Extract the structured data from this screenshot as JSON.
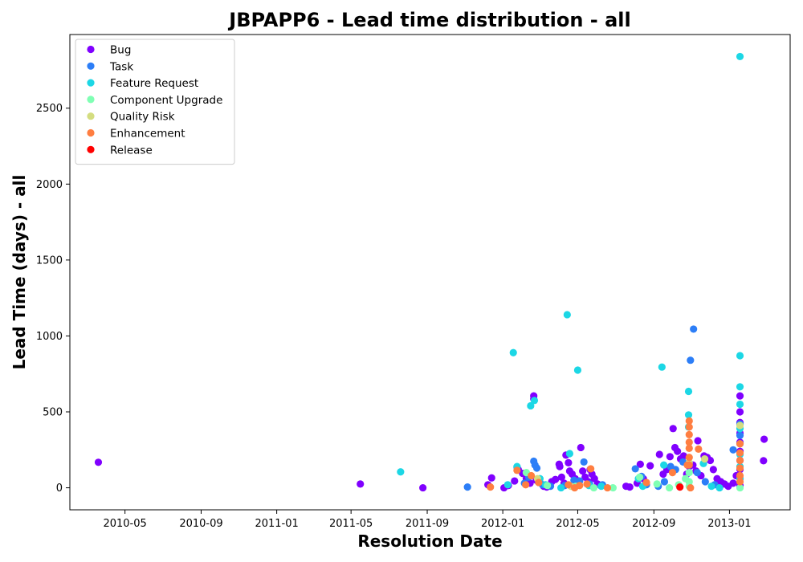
{
  "chart_data": {
    "type": "scatter",
    "title": "JBPAPP6 - Lead time distribution - all",
    "xlabel": "Resolution Date",
    "ylabel": "Lead Time (days) - all",
    "x_axis_type": "date",
    "xlim": [
      "2010-02-01",
      "2013-04-09"
    ],
    "ylim": [
      -145,
      2985
    ],
    "x_ticks": [
      "2010-05-01",
      "2010-09-01",
      "2011-01-01",
      "2011-05-01",
      "2011-09-01",
      "2012-01-01",
      "2012-05-01",
      "2012-09-01",
      "2013-01-01"
    ],
    "x_tick_labels": [
      "2010-05",
      "2010-09",
      "2011-01",
      "2011-05",
      "2011-09",
      "2012-01",
      "2012-05",
      "2012-09",
      "2013-01"
    ],
    "y_ticks": [
      0,
      500,
      1000,
      1500,
      2000,
      2500
    ],
    "y_tick_labels": [
      "0",
      "500",
      "1000",
      "1500",
      "2000",
      "2500"
    ],
    "grid": false,
    "legend_position": "top-left",
    "series": [
      {
        "name": "Bug",
        "color": "#8000ff",
        "points": [
          [
            "2010-03-19",
            168
          ],
          [
            "2011-05-16",
            25
          ],
          [
            "2011-08-25",
            0
          ],
          [
            "2011-12-08",
            20
          ],
          [
            "2011-12-14",
            65
          ],
          [
            "2012-01-03",
            0
          ],
          [
            "2012-01-10",
            15
          ],
          [
            "2012-01-20",
            45
          ],
          [
            "2012-01-26",
            120
          ],
          [
            "2012-02-02",
            95
          ],
          [
            "2012-02-08",
            60
          ],
          [
            "2012-02-14",
            30
          ],
          [
            "2012-02-20",
            605
          ],
          [
            "2012-02-20",
            585
          ],
          [
            "2012-02-24",
            50
          ],
          [
            "2012-03-01",
            35
          ],
          [
            "2012-03-07",
            10
          ],
          [
            "2012-03-12",
            5
          ],
          [
            "2012-03-20",
            40
          ],
          [
            "2012-03-26",
            55
          ],
          [
            "2012-04-01",
            155
          ],
          [
            "2012-04-02",
            140
          ],
          [
            "2012-04-05",
            70
          ],
          [
            "2012-04-09",
            30
          ],
          [
            "2012-04-12",
            215
          ],
          [
            "2012-04-16",
            165
          ],
          [
            "2012-04-18",
            110
          ],
          [
            "2012-04-22",
            90
          ],
          [
            "2012-04-27",
            60
          ],
          [
            "2012-05-02",
            25
          ],
          [
            "2012-05-06",
            265
          ],
          [
            "2012-05-09",
            110
          ],
          [
            "2012-05-13",
            70
          ],
          [
            "2012-05-18",
            40
          ],
          [
            "2012-05-21",
            120
          ],
          [
            "2012-05-24",
            90
          ],
          [
            "2012-05-28",
            60
          ],
          [
            "2012-06-02",
            25
          ],
          [
            "2012-06-07",
            15
          ],
          [
            "2012-07-18",
            10
          ],
          [
            "2012-07-24",
            5
          ],
          [
            "2012-08-05",
            30
          ],
          [
            "2012-08-10",
            155
          ],
          [
            "2012-08-15",
            60
          ],
          [
            "2012-08-26",
            145
          ],
          [
            "2012-09-10",
            220
          ],
          [
            "2012-09-16",
            90
          ],
          [
            "2012-09-22",
            120
          ],
          [
            "2012-09-27",
            205
          ],
          [
            "2012-10-02",
            390
          ],
          [
            "2012-10-05",
            265
          ],
          [
            "2012-10-09",
            240
          ],
          [
            "2012-10-14",
            190
          ],
          [
            "2012-10-19",
            210
          ],
          [
            "2012-10-24",
            90
          ],
          [
            "2012-10-28",
            140
          ],
          [
            "2012-11-03",
            150
          ],
          [
            "2012-11-08",
            110
          ],
          [
            "2012-11-11",
            310
          ],
          [
            "2012-11-16",
            80
          ],
          [
            "2012-11-21",
            210
          ],
          [
            "2012-11-26",
            200
          ],
          [
            "2012-12-01",
            180
          ],
          [
            "2012-12-06",
            120
          ],
          [
            "2012-12-12",
            60
          ],
          [
            "2012-12-18",
            40
          ],
          [
            "2012-12-24",
            25
          ],
          [
            "2012-12-30",
            10
          ],
          [
            "2013-01-07",
            30
          ],
          [
            "2013-01-12",
            80
          ],
          [
            "2013-01-18",
            605
          ],
          [
            "2013-01-18",
            500
          ],
          [
            "2013-01-18",
            430
          ],
          [
            "2013-01-18",
            360
          ],
          [
            "2013-01-18",
            300
          ],
          [
            "2013-01-18",
            240
          ],
          [
            "2013-01-18",
            180
          ],
          [
            "2013-01-18",
            120
          ],
          [
            "2013-01-18",
            60
          ],
          [
            "2013-01-18",
            15
          ],
          [
            "2013-02-26",
            320
          ],
          [
            "2013-02-25",
            178
          ]
        ]
      },
      {
        "name": "Task",
        "color": "#2c7ef7",
        "points": [
          [
            "2011-11-05",
            5
          ],
          [
            "2012-01-24",
            135
          ],
          [
            "2012-02-05",
            30
          ],
          [
            "2012-02-12",
            70
          ],
          [
            "2012-02-20",
            175
          ],
          [
            "2012-02-22",
            150
          ],
          [
            "2012-02-25",
            130
          ],
          [
            "2012-03-05",
            20
          ],
          [
            "2012-03-18",
            10
          ],
          [
            "2012-04-10",
            15
          ],
          [
            "2012-04-25",
            50
          ],
          [
            "2012-05-04",
            45
          ],
          [
            "2012-05-11",
            170
          ],
          [
            "2012-05-20",
            25
          ],
          [
            "2012-06-10",
            20
          ],
          [
            "2012-08-02",
            125
          ],
          [
            "2012-08-12",
            75
          ],
          [
            "2012-08-20",
            20
          ],
          [
            "2012-09-08",
            10
          ],
          [
            "2012-09-18",
            40
          ],
          [
            "2012-09-28",
            140
          ],
          [
            "2012-10-06",
            120
          ],
          [
            "2012-10-18",
            170
          ],
          [
            "2012-10-30",
            840
          ],
          [
            "2012-11-04",
            1045
          ],
          [
            "2012-11-10",
            100
          ],
          [
            "2012-11-23",
            40
          ],
          [
            "2012-12-08",
            20
          ],
          [
            "2013-01-07",
            250
          ],
          [
            "2013-01-18",
            420
          ],
          [
            "2013-01-18",
            345
          ]
        ]
      },
      {
        "name": "Feature Request",
        "color": "#1cd7e5",
        "points": [
          [
            "2011-07-20",
            105
          ],
          [
            "2012-01-09",
            20
          ],
          [
            "2012-01-18",
            890
          ],
          [
            "2012-01-24",
            140
          ],
          [
            "2012-02-15",
            540
          ],
          [
            "2012-02-21",
            575
          ],
          [
            "2012-03-01",
            60
          ],
          [
            "2012-03-10",
            20
          ],
          [
            "2012-04-04",
            0
          ],
          [
            "2012-04-14",
            1140
          ],
          [
            "2012-04-18",
            225
          ],
          [
            "2012-05-01",
            775
          ],
          [
            "2012-05-19",
            15
          ],
          [
            "2012-06-08",
            10
          ],
          [
            "2012-08-07",
            60
          ],
          [
            "2012-08-14",
            10
          ],
          [
            "2012-09-14",
            795
          ],
          [
            "2012-09-17",
            150
          ],
          [
            "2012-10-27",
            635
          ],
          [
            "2012-10-27",
            480
          ],
          [
            "2012-10-27",
            400
          ],
          [
            "2012-11-20",
            160
          ],
          [
            "2012-12-03",
            10
          ],
          [
            "2012-12-16",
            0
          ],
          [
            "2013-01-18",
            2840
          ],
          [
            "2013-01-18",
            870
          ],
          [
            "2013-01-18",
            665
          ],
          [
            "2013-01-18",
            550
          ],
          [
            "2013-01-18",
            390
          ],
          [
            "2013-01-18",
            290
          ],
          [
            "2013-01-18",
            220
          ],
          [
            "2013-01-18",
            140
          ],
          [
            "2013-01-18",
            60
          ]
        ]
      },
      {
        "name": "Component  Upgrade",
        "color": "#80ffb4",
        "points": [
          [
            "2012-02-08",
            100
          ],
          [
            "2012-03-13",
            15
          ],
          [
            "2012-04-28",
            10
          ],
          [
            "2012-05-27",
            0
          ],
          [
            "2012-06-27",
            0
          ],
          [
            "2012-08-09",
            70
          ],
          [
            "2012-09-06",
            25
          ],
          [
            "2012-09-26",
            0
          ],
          [
            "2012-10-11",
            20
          ],
          [
            "2012-10-22",
            60
          ],
          [
            "2012-10-28",
            40
          ],
          [
            "2012-10-28",
            100
          ],
          [
            "2012-10-28",
            10
          ],
          [
            "2013-01-18",
            0
          ]
        ]
      },
      {
        "name": "Quality Risk",
        "color": "#d4dd80",
        "points": [
          [
            "2012-02-26",
            60
          ],
          [
            "2012-04-20",
            10
          ],
          [
            "2012-10-28",
            165
          ],
          [
            "2012-11-22",
            190
          ],
          [
            "2013-01-18",
            410
          ]
        ]
      },
      {
        "name": "Enhancement",
        "color": "#ff7e41",
        "points": [
          [
            "2011-12-12",
            5
          ],
          [
            "2012-01-24",
            115
          ],
          [
            "2012-02-07",
            20
          ],
          [
            "2012-02-16",
            80
          ],
          [
            "2012-02-28",
            35
          ],
          [
            "2012-04-16",
            20
          ],
          [
            "2012-04-26",
            0
          ],
          [
            "2012-05-04",
            15
          ],
          [
            "2012-05-16",
            25
          ],
          [
            "2012-05-22",
            125
          ],
          [
            "2012-06-18",
            0
          ],
          [
            "2012-08-20",
            35
          ],
          [
            "2012-10-01",
            100
          ],
          [
            "2012-10-25",
            150
          ],
          [
            "2012-10-28",
            440
          ],
          [
            "2012-10-28",
            400
          ],
          [
            "2012-10-28",
            350
          ],
          [
            "2012-10-28",
            300
          ],
          [
            "2012-10-28",
            260
          ],
          [
            "2012-10-28",
            200
          ],
          [
            "2012-10-28",
            150
          ],
          [
            "2012-10-30",
            0
          ],
          [
            "2012-11-12",
            255
          ],
          [
            "2013-01-18",
            290
          ],
          [
            "2013-01-18",
            230
          ],
          [
            "2013-01-18",
            180
          ],
          [
            "2013-01-18",
            130
          ],
          [
            "2013-01-18",
            80
          ],
          [
            "2013-01-18",
            40
          ]
        ]
      },
      {
        "name": "Release",
        "color": "#ff0000",
        "points": [
          [
            "2012-10-13",
            5
          ]
        ]
      }
    ]
  }
}
